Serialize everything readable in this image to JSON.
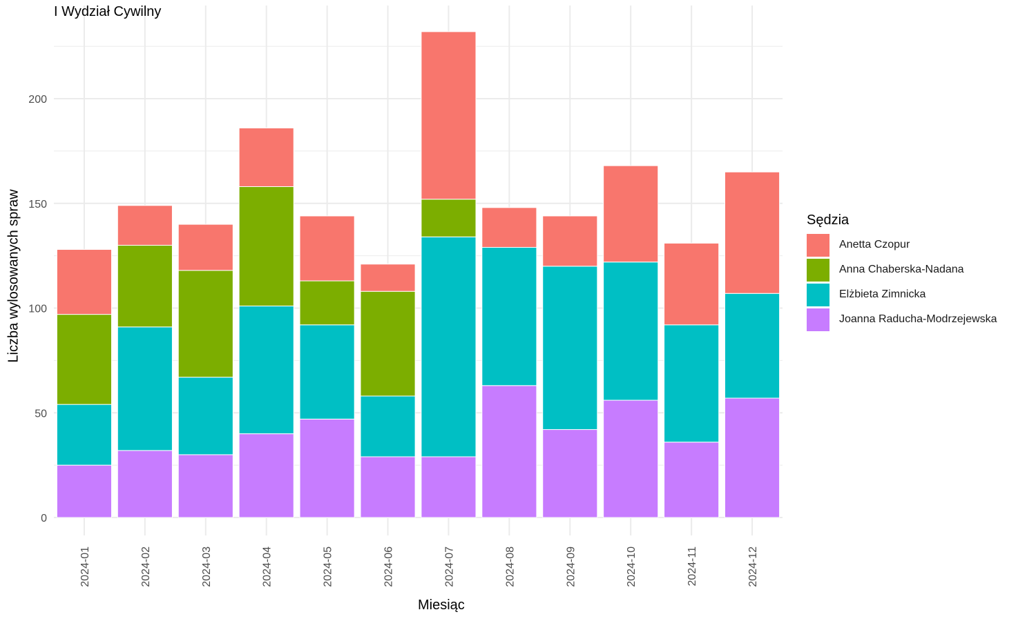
{
  "chart_data": {
    "type": "bar",
    "stacked": true,
    "title": "I Wydział Cywilny",
    "xlabel": "Miesiąc",
    "ylabel": "Liczba wylosowanych spraw",
    "ylim": [
      0,
      232
    ],
    "yticks": [
      0,
      50,
      100,
      150,
      200
    ],
    "grid": true,
    "legend_title": "Sędzia",
    "legend_position": "right",
    "categories": [
      "2024-01",
      "2024-02",
      "2024-03",
      "2024-04",
      "2024-05",
      "2024-06",
      "2024-07",
      "2024-08",
      "2024-09",
      "2024-10",
      "2024-11",
      "2024-12"
    ],
    "series": [
      {
        "name": "Anetta Czopur",
        "color": "#F8766D",
        "values": [
          31,
          19,
          22,
          28,
          31,
          13,
          80,
          19,
          24,
          46,
          39,
          58
        ]
      },
      {
        "name": "Anna Chaberska-Nadana",
        "color": "#7CAE00",
        "values": [
          43,
          39,
          51,
          57,
          21,
          50,
          18,
          0,
          0,
          0,
          0,
          0
        ]
      },
      {
        "name": "Elżbieta Zimnicka",
        "color": "#00BFC4",
        "values": [
          29,
          59,
          37,
          61,
          45,
          29,
          105,
          66,
          78,
          66,
          56,
          50
        ]
      },
      {
        "name": "Joanna Raducha-Modrzejewska",
        "color": "#C77CFF",
        "values": [
          25,
          32,
          30,
          40,
          47,
          29,
          29,
          63,
          42,
          56,
          36,
          57
        ]
      }
    ]
  }
}
